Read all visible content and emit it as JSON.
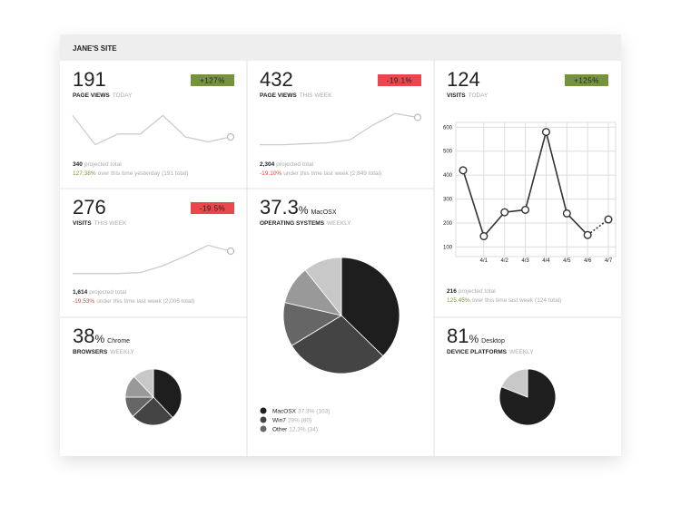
{
  "header": {
    "title": "JANE'S SITE"
  },
  "cards": [
    {
      "value": "191",
      "label": "PAGE VIEWS",
      "period": "TODAY",
      "badge": "+127%",
      "badge_color": "#77923c",
      "spark": {
        "values": [
          35,
          5,
          16,
          16,
          35,
          13,
          8,
          13
        ],
        "ylim": [
          0,
          40
        ]
      },
      "footer": {
        "total": "340",
        "total_text": "projected total",
        "change": "127.38%",
        "change_text": "over this time yesterday (191 total)",
        "change_color": "#7a9a3a"
      }
    },
    {
      "value": "432",
      "label": "PAGE VIEWS",
      "period": "THIS WEEK",
      "badge": "-19.1%",
      "badge_color": "#e8474b",
      "spark": {
        "values": [
          5,
          5,
          6,
          7,
          10,
          25,
          37,
          33
        ],
        "ylim": [
          0,
          40
        ]
      },
      "footer": {
        "total": "2,304",
        "total_text": "projected total",
        "change": "-19.10%",
        "change_text": "under this time last week (2,849 total)",
        "change_color": "#e04545"
      }
    },
    {
      "value": "124",
      "label": "VISITS",
      "period": "TODAY",
      "badge": "+125%",
      "badge_color": "#77923c",
      "line": {
        "categories": [
          null,
          "4/1",
          "4/2",
          "4/3",
          "4/4",
          "4/5",
          "4/6",
          "4/7"
        ],
        "values": [
          420,
          145,
          245,
          255,
          580,
          240,
          150,
          215
        ],
        "ylim": [
          60,
          620
        ],
        "yticks": [
          100,
          200,
          300,
          400,
          500,
          600
        ],
        "grid": true,
        "dashed_last": true
      },
      "footer": {
        "total": "216",
        "total_text": "projected total",
        "change": "125.45%",
        "change_text": "over this time last week (124 total)",
        "change_color": "#7a9a3a"
      }
    },
    {
      "value": "276",
      "label": "VISITS",
      "period": "THIS WEEK",
      "badge": "-19.5%",
      "badge_color": "#e8474b",
      "spark": {
        "values": [
          4,
          4,
          4,
          5,
          12,
          22,
          33,
          27
        ],
        "ylim": [
          0,
          40
        ]
      },
      "footer": {
        "total": "1,614",
        "total_text": "projected total",
        "change": "-19.53%",
        "change_text": "under this time last week (2,006 total)",
        "change_color": "#e04545"
      }
    },
    {
      "value": "37.3",
      "unit": "%",
      "sub": "MacOSX",
      "label": "OPERATING SYSTEMS",
      "period": "WEEKLY",
      "pie": {
        "slices": [
          {
            "name": "MacOSX",
            "value": 37.3,
            "label": "37.3% (103)",
            "color": "#1e1e1e"
          },
          {
            "name": "Win7",
            "value": 29,
            "label": "29% (80)",
            "color": "#444444"
          },
          {
            "name": "Other",
            "value": 12.3,
            "label": "12.3% (34)",
            "color": "#666666"
          },
          {
            "value": 10.7,
            "color": "#999999"
          },
          {
            "value": 10.7,
            "color": "#c8c8c8"
          }
        ]
      }
    },
    {
      "value": "38",
      "unit": "%",
      "sub": "Chrome",
      "label": "BROWSERS",
      "period": "WEEKLY",
      "pie": {
        "slices": [
          {
            "value": 38,
            "color": "#1e1e1e"
          },
          {
            "value": 25,
            "color": "#444444"
          },
          {
            "value": 12,
            "color": "#666666"
          },
          {
            "value": 13,
            "color": "#999999"
          },
          {
            "value": 12,
            "color": "#c8c8c8"
          }
        ]
      }
    },
    {
      "value": "81",
      "unit": "%",
      "sub": "Desktop",
      "label": "DEVICE PLATFORMS",
      "period": "WEEKLY",
      "pie": {
        "slices": [
          {
            "value": 81,
            "color": "#1e1e1e"
          },
          {
            "value": 19,
            "color": "#c8c8c8"
          }
        ]
      }
    }
  ]
}
